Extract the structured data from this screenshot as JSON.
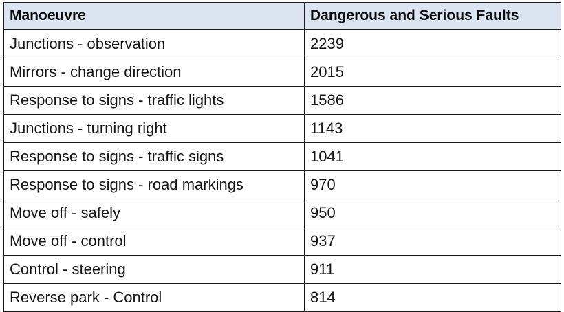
{
  "table": {
    "headers": [
      "Manoeuvre",
      "Dangerous and Serious Faults"
    ],
    "rows": [
      [
        "Junctions - observation",
        "2239"
      ],
      [
        "Mirrors - change direction",
        "2015"
      ],
      [
        "Response to signs - traffic lights",
        "1586"
      ],
      [
        "Junctions - turning right",
        "1143"
      ],
      [
        "Response to signs - traffic signs",
        "1041"
      ],
      [
        "Response to signs - road markings",
        "970"
      ],
      [
        "Move off - safely",
        "950"
      ],
      [
        "Move off - control",
        "937"
      ],
      [
        "Control - steering",
        "911"
      ],
      [
        "Reverse park - Control",
        "814"
      ]
    ]
  },
  "colors": {
    "header_background": "#dbe5f2",
    "border": "#1a1a1a"
  }
}
